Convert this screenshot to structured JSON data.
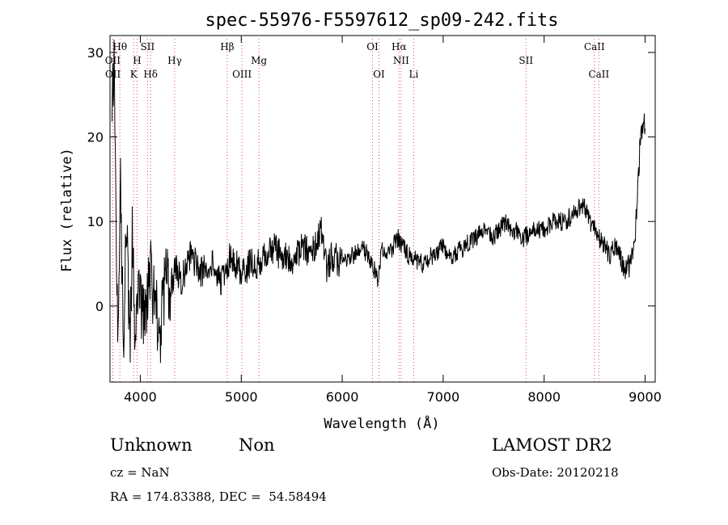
{
  "chart_data": {
    "type": "line",
    "title": "spec-55976-F5597612_sp09-242.fits",
    "xlabel": "Wavelength (Å)",
    "ylabel": "Flux (relative)",
    "xlim": [
      3700,
      9100
    ],
    "ylim": [
      -9,
      32
    ],
    "xticks": [
      4000,
      5000,
      6000,
      7000,
      8000,
      9000
    ],
    "yticks": [
      0,
      10,
      20,
      30
    ],
    "grid": false,
    "line_color": "#000000",
    "marker_color": "#d9534f",
    "series": [
      {
        "x": [
          3720,
          3740,
          3760,
          3780,
          3800,
          3820,
          3840,
          3860,
          3880,
          3900,
          3920,
          3940,
          3960,
          3980,
          4000,
          4050,
          4100,
          4150,
          4200,
          4250,
          4300,
          4350,
          4400,
          4450,
          4500,
          4600,
          4700,
          4800,
          4900,
          5000,
          5100,
          5200,
          5300,
          5400,
          5500,
          5600,
          5700,
          5750,
          5800,
          5850,
          5900,
          6000,
          6100,
          6200,
          6300,
          6350,
          6400,
          6450,
          6500,
          6550,
          6600,
          6650,
          6700,
          6750,
          6800,
          6900,
          7000,
          7100,
          7200,
          7300,
          7400,
          7500,
          7600,
          7700,
          7800,
          7900,
          8000,
          8100,
          8200,
          8300,
          8400,
          8450,
          8500,
          8550,
          8600,
          8650,
          8700,
          8750,
          8800,
          8850,
          8900,
          8950,
          8980,
          9000
        ],
        "y": [
          22,
          28,
          10,
          -5,
          18,
          4,
          -6,
          12,
          2,
          -3,
          8,
          0,
          -4,
          5,
          1,
          -2,
          4,
          0,
          -3,
          3,
          2,
          5,
          3,
          4,
          6,
          4,
          5,
          3,
          6,
          4,
          5,
          5,
          7,
          6,
          5,
          7,
          6,
          8,
          9,
          4,
          6,
          5,
          6,
          7,
          5,
          3,
          7,
          6,
          7,
          8,
          7,
          6,
          6,
          5,
          5,
          6,
          7,
          6,
          7,
          8,
          9,
          8,
          10,
          9,
          8,
          9,
          9,
          10,
          10,
          11,
          12,
          10,
          9,
          8,
          7,
          6,
          7,
          6,
          4,
          5,
          8,
          19,
          22,
          21
        ]
      }
    ],
    "line_markers": [
      {
        "label": "Hθ",
        "x": 3798,
        "row": 0
      },
      {
        "label": "OII",
        "x": 3727,
        "row": 1
      },
      {
        "label": "OII",
        "x": 3729,
        "row": 2
      },
      {
        "label": "SII",
        "x": 4072,
        "row": 0
      },
      {
        "label": "H",
        "x": 3968,
        "row": 1
      },
      {
        "label": "K",
        "x": 3934,
        "row": 2
      },
      {
        "label": "Hδ",
        "x": 4102,
        "row": 2
      },
      {
        "label": "Hγ",
        "x": 4341,
        "row": 1
      },
      {
        "label": "Hβ",
        "x": 4861,
        "row": 0
      },
      {
        "label": "OIII",
        "x": 5007,
        "row": 2
      },
      {
        "label": "Mg",
        "x": 5175,
        "row": 1
      },
      {
        "label": "OI",
        "x": 6300,
        "row": 0
      },
      {
        "label": "OI",
        "x": 6364,
        "row": 2
      },
      {
        "label": "Hα",
        "x": 6563,
        "row": 0
      },
      {
        "label": "NII",
        "x": 6583,
        "row": 1
      },
      {
        "label": "Li",
        "x": 6708,
        "row": 2
      },
      {
        "label": "SII",
        "x": 7820,
        "row": 1
      },
      {
        "label": "CaII",
        "x": 8498,
        "row": 0
      },
      {
        "label": "CaII",
        "x": 8542,
        "row": 2
      }
    ]
  },
  "info": {
    "class": "Unknown",
    "subclass": "Non",
    "survey": "LAMOST DR2",
    "cz": "cz = NaN",
    "obs_date": "Obs-Date: 20120218",
    "coords": "RA = 174.83388, DEC =  54.58494"
  }
}
